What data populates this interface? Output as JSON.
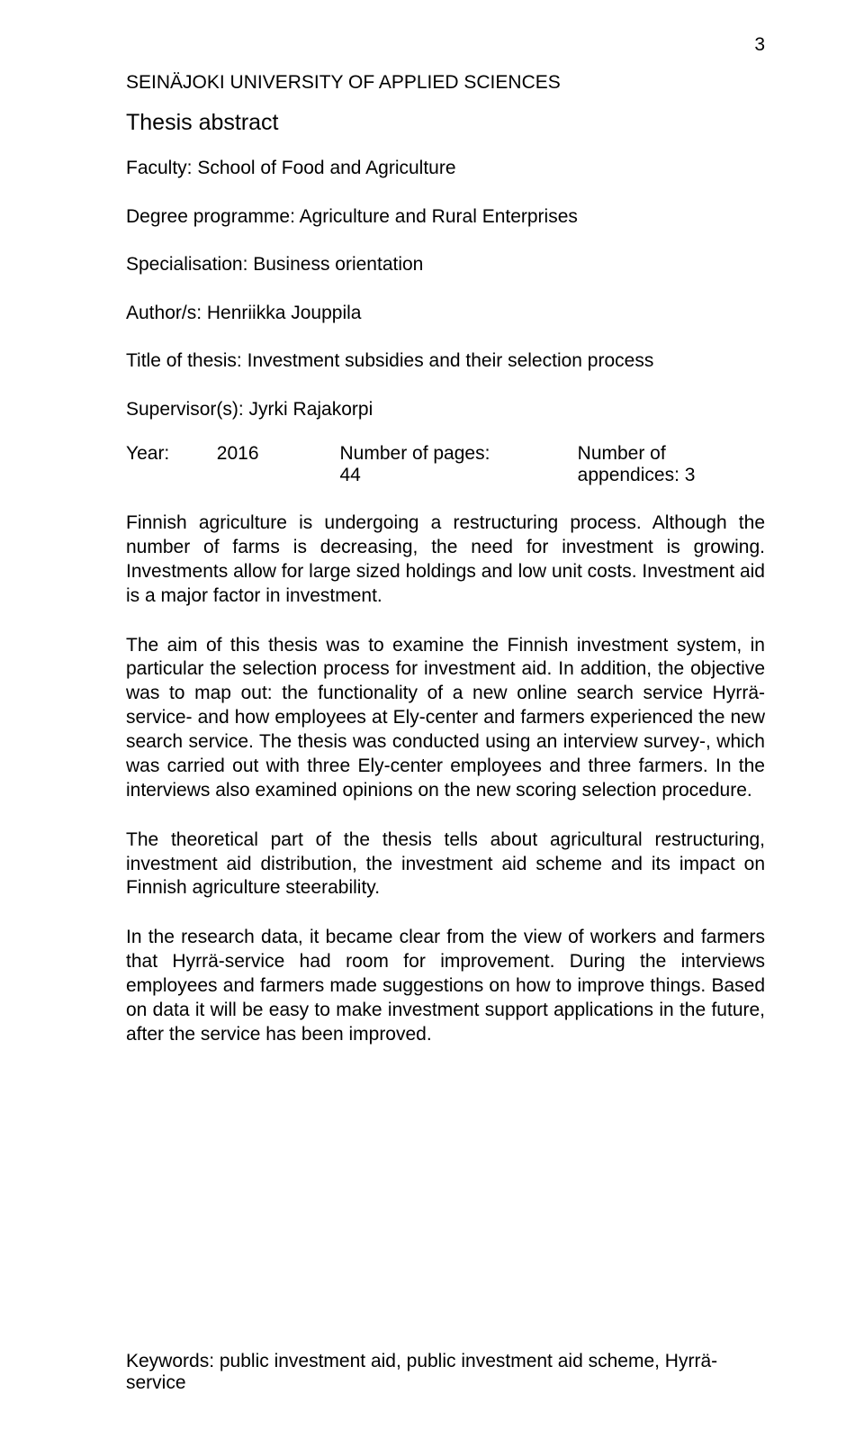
{
  "page_number": "3",
  "header": {
    "university": "SEINÄJOKI UNIVERSITY OF APPLIED SCIENCES",
    "thesis_abstract": "Thesis abstract"
  },
  "meta": {
    "faculty": "Faculty: School of Food and Agriculture",
    "degree": "Degree programme: Agriculture and Rural Enterprises",
    "specialisation": "Specialisation: Business orientation",
    "author": "Author/s: Henriikka Jouppila",
    "title_of_thesis": "Title of thesis: Investment subsidies and their selection process",
    "supervisor": "Supervisor(s): Jyrki Rajakorpi"
  },
  "stats": {
    "year_label": "Year:",
    "year_value": "2016",
    "pages": "Number of pages: 44",
    "appendices": "Number of appendices:   3"
  },
  "paragraphs": {
    "p1": "Finnish agriculture is undergoing a restructuring process. Although the number of farms is decreasing, the need for investment is growing. Investments allow for large sized holdings and low unit costs. Investment aid is a major factor in investment.",
    "p2": "The aim of this thesis was to examine the Finnish investment system, in particular the selection process for investment aid. In addition, the objective was to map out: the functionality of a new online search service Hyrrä-service- and how employees at Ely-center and farmers experienced the new search service. The thesis was conducted using an interview survey-, which was carried out with three Ely-center employees and three farmers. In the interviews also examined opinions on the new scoring selection procedure.",
    "p3": "The theoretical part of the thesis tells about agricultural restructuring, investment aid distribution, the investment aid scheme and its impact on Finnish agriculture steerability.",
    "p4": "In the research data, it became clear from the view of workers and farmers that Hyrrä-service had room for improvement. During the interviews employees and farmers made suggestions on how to improve things. Based on data it will be easy to make investment support applications in the future, after the service has been improved."
  },
  "keywords": "Keywords: public investment aid, public investment aid scheme, Hyrrä-service",
  "style": {
    "text_color": "#000000",
    "background_color": "#ffffff",
    "body_fontsize_pt": 16,
    "heading_fontsize_pt": 19,
    "font_family": "Arial"
  }
}
